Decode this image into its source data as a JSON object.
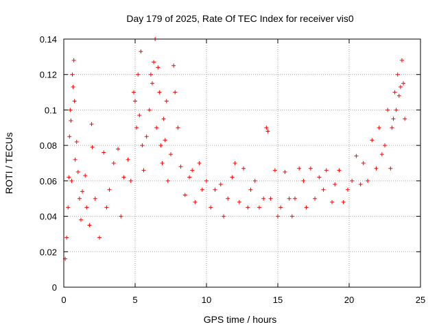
{
  "chart_data": {
    "type": "scatter",
    "title": "Day 179 of 2025, Rate Of TEC Index for receiver vis0",
    "xlabel": "GPS time / hours",
    "ylabel": "ROTI / TECUs",
    "xlim": [
      0,
      25
    ],
    "ylim": [
      0,
      0.14
    ],
    "xticks": [
      0,
      5,
      10,
      15,
      20,
      25
    ],
    "xtick_labels": [
      "0",
      "5",
      "10",
      "15",
      "20",
      "25"
    ],
    "yticks": [
      0,
      0.02,
      0.04,
      0.06,
      0.08,
      0.1,
      0.12,
      0.14
    ],
    "ytick_labels": [
      "0",
      "0.02",
      "0.04",
      "0.06",
      "0.08",
      "0.1",
      "0.12",
      "0.14"
    ],
    "grid": true,
    "marker": "+",
    "series_color": "#ff0000",
    "series": [
      {
        "points": [
          [
            0.1,
            0.016
          ],
          [
            0.2,
            0.028
          ],
          [
            0.3,
            0.045
          ],
          [
            0.35,
            0.062
          ],
          [
            0.4,
            0.085
          ],
          [
            0.45,
            0.1
          ],
          [
            0.5,
            0.094
          ],
          [
            0.55,
            0.06
          ],
          [
            0.6,
            0.12
          ],
          [
            0.65,
            0.113
          ],
          [
            0.7,
            0.128
          ],
          [
            0.75,
            0.105
          ],
          [
            0.8,
            0.072
          ],
          [
            0.9,
            0.082
          ],
          [
            1.0,
            0.065
          ],
          [
            1.1,
            0.05
          ],
          [
            1.2,
            0.038
          ],
          [
            1.3,
            0.054
          ],
          [
            1.5,
            0.063
          ],
          [
            1.6,
            0.045
          ],
          [
            1.8,
            0.035
          ],
          [
            1.95,
            0.092
          ],
          [
            2.0,
            0.079
          ],
          [
            2.2,
            0.05
          ],
          [
            2.5,
            0.028
          ],
          [
            2.8,
            0.076
          ],
          [
            3.0,
            0.045
          ],
          [
            3.2,
            0.055
          ],
          [
            3.5,
            0.07
          ],
          [
            3.8,
            0.078
          ],
          [
            4.0,
            0.04
          ],
          [
            4.2,
            0.062
          ],
          [
            4.5,
            0.072
          ],
          [
            4.7,
            0.06
          ],
          [
            4.9,
            0.11
          ],
          [
            5.0,
            0.105
          ],
          [
            5.1,
            0.09
          ],
          [
            5.2,
            0.12
          ],
          [
            5.3,
            0.097
          ],
          [
            5.4,
            0.133
          ],
          [
            5.5,
            0.08
          ],
          [
            5.6,
            0.066
          ],
          [
            5.8,
            0.085
          ],
          [
            6.0,
            0.1
          ],
          [
            6.1,
            0.12
          ],
          [
            6.2,
            0.115
          ],
          [
            6.3,
            0.127
          ],
          [
            6.4,
            0.14
          ],
          [
            6.5,
            0.09
          ],
          [
            6.6,
            0.124
          ],
          [
            6.7,
            0.11
          ],
          [
            6.8,
            0.08
          ],
          [
            6.9,
            0.07
          ],
          [
            7.0,
            0.095
          ],
          [
            7.1,
            0.083
          ],
          [
            7.2,
            0.105
          ],
          [
            7.3,
            0.06
          ],
          [
            7.5,
            0.075
          ],
          [
            7.7,
            0.125
          ],
          [
            7.8,
            0.11
          ],
          [
            8.0,
            0.09
          ],
          [
            8.2,
            0.068
          ],
          [
            8.5,
            0.052
          ],
          [
            8.8,
            0.062
          ],
          [
            9.0,
            0.066
          ],
          [
            9.2,
            0.048
          ],
          [
            9.5,
            0.07
          ],
          [
            9.7,
            0.055
          ],
          [
            10.0,
            0.06
          ],
          [
            10.3,
            0.045
          ],
          [
            10.6,
            0.055
          ],
          [
            11.0,
            0.058
          ],
          [
            11.2,
            0.04
          ],
          [
            11.5,
            0.05
          ],
          [
            11.8,
            0.062
          ],
          [
            12.0,
            0.07
          ],
          [
            12.3,
            0.048
          ],
          [
            12.6,
            0.067
          ],
          [
            12.9,
            0.045
          ],
          [
            13.1,
            0.055
          ],
          [
            13.4,
            0.06
          ],
          [
            13.7,
            0.045
          ],
          [
            14.0,
            0.05
          ],
          [
            14.2,
            0.09
          ],
          [
            14.3,
            0.088
          ],
          [
            14.5,
            0.05
          ],
          [
            14.8,
            0.066
          ],
          [
            15.0,
            0.04
          ],
          [
            15.2,
            0.045
          ],
          [
            15.5,
            0.065
          ],
          [
            15.8,
            0.05
          ],
          [
            16.0,
            0.04
          ],
          [
            16.2,
            0.05
          ],
          [
            16.5,
            0.067
          ],
          [
            16.8,
            0.06
          ],
          [
            17.0,
            0.045
          ],
          [
            17.3,
            0.067
          ],
          [
            17.6,
            0.05
          ],
          [
            17.9,
            0.062
          ],
          [
            18.2,
            0.055
          ],
          [
            18.4,
            0.066
          ],
          [
            18.8,
            0.048
          ],
          [
            19.0,
            0.058
          ],
          [
            19.3,
            0.066
          ],
          [
            19.6,
            0.048
          ],
          [
            19.9,
            0.055
          ],
          [
            20.2,
            0.06
          ],
          [
            20.5,
            0.074
          ],
          [
            20.8,
            0.058
          ],
          [
            21.0,
            0.07
          ],
          [
            21.3,
            0.06
          ],
          [
            21.6,
            0.083
          ],
          [
            21.9,
            0.067
          ],
          [
            22.1,
            0.09
          ],
          [
            22.3,
            0.075
          ],
          [
            22.5,
            0.08
          ],
          [
            22.7,
            0.1
          ],
          [
            22.9,
            0.067
          ],
          [
            23.0,
            0.09
          ],
          [
            23.1,
            0.095
          ],
          [
            23.2,
            0.11
          ],
          [
            23.3,
            0.1
          ],
          [
            23.4,
            0.12
          ],
          [
            23.5,
            0.108
          ],
          [
            23.6,
            0.113
          ],
          [
            23.7,
            0.128
          ],
          [
            23.8,
            0.115
          ],
          [
            23.9,
            0.095
          ]
        ]
      }
    ]
  }
}
